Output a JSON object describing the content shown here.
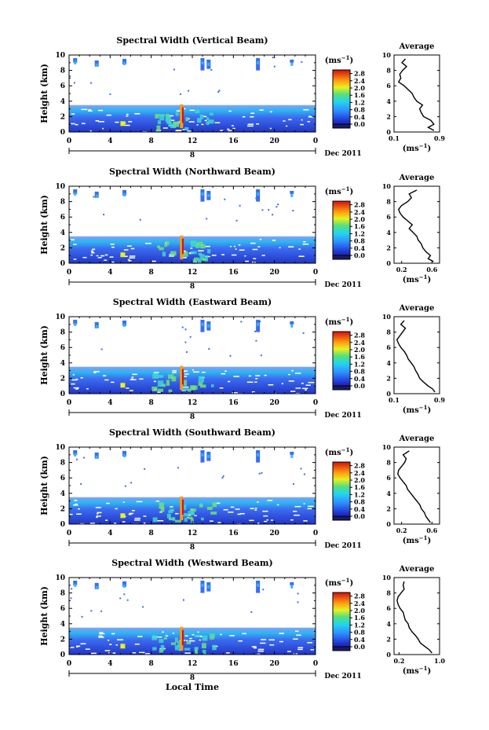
{
  "figure": {
    "common_xlabel": "Local Time",
    "date_label": "Dec 2011",
    "day_marker": "8",
    "colorbar_unit_base": "(ms",
    "colorbar_unit_exp": "−1",
    "avg_title": "Average",
    "avg_xlabel_base": "(ms",
    "avg_xlabel_exp": "−1",
    "height_label": "Height (km)"
  },
  "chart_data": [
    {
      "type": "heatmap",
      "title": "Spectral Width (Vertical Beam)",
      "ylabel": "Height (km)",
      "xticks": [
        "0",
        "4",
        "8",
        "12",
        "16",
        "20",
        "0"
      ],
      "yticks": [
        "0",
        "2",
        "4",
        "6",
        "8",
        "10"
      ],
      "xlim": [
        0,
        24
      ],
      "ylim": [
        0,
        10
      ],
      "colorbar": {
        "label": "(ms⁻¹)",
        "ticks": [
          "0.0",
          "0.4",
          "0.8",
          "1.2",
          "1.6",
          "2.0",
          "2.4",
          "2.8"
        ],
        "range": [
          0,
          3.0
        ]
      },
      "average_profile": {
        "title": "Average",
        "xlabel": "(ms⁻¹)",
        "xlim": [
          0.1,
          0.9
        ],
        "xticks": [
          "0.1",
          "0.9"
        ],
        "ylim": [
          0,
          10
        ],
        "yticks": [
          "0",
          "2",
          "4",
          "6",
          "8",
          "10"
        ],
        "height_km": [
          0.2,
          0.6,
          1.0,
          1.5,
          2.0,
          2.5,
          3.0,
          3.5,
          4.0,
          4.5,
          5.0,
          5.5,
          6.0,
          6.5,
          7.0,
          7.5,
          8.0,
          8.5,
          9.0,
          9.5
        ],
        "values": [
          0.8,
          0.7,
          0.8,
          0.75,
          0.62,
          0.58,
          0.55,
          0.6,
          0.5,
          0.45,
          0.42,
          0.35,
          0.28,
          0.18,
          0.22,
          0.2,
          0.25,
          0.32,
          0.24,
          0.3
        ]
      }
    },
    {
      "type": "heatmap",
      "title": "Spectral Width (Northward Beam)",
      "ylabel": "Height (km)",
      "xticks": [
        "0",
        "4",
        "8",
        "12",
        "16",
        "20",
        "0"
      ],
      "yticks": [
        "0",
        "2",
        "4",
        "6",
        "8",
        "10"
      ],
      "xlim": [
        0,
        24
      ],
      "ylim": [
        0,
        10
      ],
      "colorbar": {
        "label": "(ms⁻¹)",
        "ticks": [
          "0.0",
          "0.4",
          "0.8",
          "1.2",
          "1.6",
          "2.0",
          "2.4",
          "2.8"
        ],
        "range": [
          0,
          3.0
        ]
      },
      "average_profile": {
        "title": "Average",
        "xlabel": "(ms⁻¹)",
        "xlim": [
          0.1,
          0.7
        ],
        "xticks": [
          "0.2",
          "0.6"
        ],
        "ylim": [
          0,
          10
        ],
        "yticks": [
          "0",
          "2",
          "4",
          "6",
          "8",
          "10"
        ],
        "height_km": [
          0.2,
          0.6,
          1.0,
          1.5,
          2.0,
          2.5,
          3.0,
          3.5,
          4.0,
          4.5,
          5.0,
          5.5,
          6.0,
          6.5,
          7.0,
          7.5,
          8.0,
          8.5,
          9.0,
          9.5
        ],
        "values": [
          0.62,
          0.55,
          0.58,
          0.52,
          0.48,
          0.46,
          0.42,
          0.4,
          0.35,
          0.3,
          0.34,
          0.28,
          0.22,
          0.18,
          0.16,
          0.2,
          0.28,
          0.33,
          0.3,
          0.4
        ]
      }
    },
    {
      "type": "heatmap",
      "title": "Spectral Width (Eastward Beam)",
      "ylabel": "Height (km)",
      "xticks": [
        "0",
        "4",
        "8",
        "12",
        "16",
        "20",
        "0"
      ],
      "yticks": [
        "0",
        "2",
        "4",
        "6",
        "8",
        "10"
      ],
      "xlim": [
        0,
        24
      ],
      "ylim": [
        0,
        10
      ],
      "colorbar": {
        "label": "(ms⁻¹)",
        "ticks": [
          "0.0",
          "0.4",
          "0.8",
          "1.2",
          "1.6",
          "2.0",
          "2.4",
          "2.8"
        ],
        "range": [
          0,
          3.0
        ]
      },
      "average_profile": {
        "title": "Average",
        "xlabel": "(ms⁻¹)",
        "xlim": [
          0.1,
          0.9
        ],
        "xticks": [
          "0.1",
          "0.9"
        ],
        "ylim": [
          0,
          10
        ],
        "yticks": [
          "0",
          "2",
          "4",
          "6",
          "8",
          "10"
        ],
        "height_km": [
          0.2,
          0.6,
          1.0,
          1.5,
          2.0,
          2.5,
          3.0,
          3.5,
          4.0,
          4.5,
          5.0,
          5.5,
          6.0,
          6.5,
          7.0,
          7.5,
          8.0,
          8.5,
          9.0,
          9.5
        ],
        "values": [
          0.82,
          0.78,
          0.7,
          0.62,
          0.55,
          0.52,
          0.48,
          0.45,
          0.4,
          0.35,
          0.32,
          0.28,
          0.22,
          0.18,
          0.15,
          0.2,
          0.25,
          0.3,
          0.22,
          0.28
        ]
      }
    },
    {
      "type": "heatmap",
      "title": "Spectral Width (Southward Beam)",
      "ylabel": "Height (km)",
      "xticks": [
        "0",
        "4",
        "8",
        "12",
        "16",
        "20",
        "0"
      ],
      "yticks": [
        "0",
        "2",
        "4",
        "6",
        "8",
        "10"
      ],
      "xlim": [
        0,
        24
      ],
      "ylim": [
        0,
        10
      ],
      "colorbar": {
        "label": "(ms⁻¹)",
        "ticks": [
          "0.0",
          "0.4",
          "0.8",
          "1.2",
          "1.6",
          "2.0",
          "2.4",
          "2.8"
        ],
        "range": [
          0,
          3.0
        ]
      },
      "average_profile": {
        "title": "Average",
        "xlabel": "(ms⁻¹)",
        "xlim": [
          0.1,
          0.7
        ],
        "xticks": [
          "0.2",
          "0.6"
        ],
        "ylim": [
          0,
          10
        ],
        "yticks": [
          "0",
          "2",
          "4",
          "6",
          "8",
          "10"
        ],
        "height_km": [
          0.2,
          0.6,
          1.0,
          1.5,
          2.0,
          2.5,
          3.0,
          3.5,
          4.0,
          4.5,
          5.0,
          5.5,
          6.0,
          6.5,
          7.0,
          7.5,
          8.0,
          8.5,
          9.0,
          9.5
        ],
        "values": [
          0.58,
          0.55,
          0.52,
          0.5,
          0.46,
          0.44,
          0.4,
          0.36,
          0.32,
          0.28,
          0.26,
          0.22,
          0.18,
          0.15,
          0.16,
          0.2,
          0.24,
          0.26,
          0.22,
          0.3
        ]
      }
    },
    {
      "type": "heatmap",
      "title": "Spectral Width (Westward Beam)",
      "ylabel": "Height (km)",
      "xticks": [
        "0",
        "4",
        "8",
        "12",
        "16",
        "20",
        "0"
      ],
      "yticks": [
        "0",
        "2",
        "4",
        "6",
        "8",
        "10"
      ],
      "xlim": [
        0,
        24
      ],
      "ylim": [
        0,
        10
      ],
      "colorbar": {
        "label": "(ms⁻¹)",
        "ticks": [
          "0.0",
          "0.4",
          "0.8",
          "1.2",
          "1.6",
          "2.0",
          "2.4",
          "2.8"
        ],
        "range": [
          0,
          3.0
        ]
      },
      "average_profile": {
        "title": "Average",
        "xlabel": "(ms⁻¹)",
        "xlim": [
          0.1,
          1.0
        ],
        "xticks": [
          "0.2",
          "1.0"
        ],
        "ylim": [
          0,
          10
        ],
        "yticks": [
          "0",
          "2",
          "4",
          "6",
          "8",
          "10"
        ],
        "height_km": [
          0.2,
          0.6,
          1.0,
          1.5,
          2.0,
          2.5,
          3.0,
          3.5,
          4.0,
          4.5,
          5.0,
          5.5,
          6.0,
          6.5,
          7.0,
          7.5,
          8.0,
          8.5,
          9.0,
          9.5
        ],
        "values": [
          0.85,
          0.8,
          0.72,
          0.62,
          0.58,
          0.52,
          0.45,
          0.4,
          0.38,
          0.32,
          0.3,
          0.28,
          0.22,
          0.18,
          0.16,
          0.18,
          0.24,
          0.3,
          0.28,
          0.3
        ]
      }
    }
  ]
}
